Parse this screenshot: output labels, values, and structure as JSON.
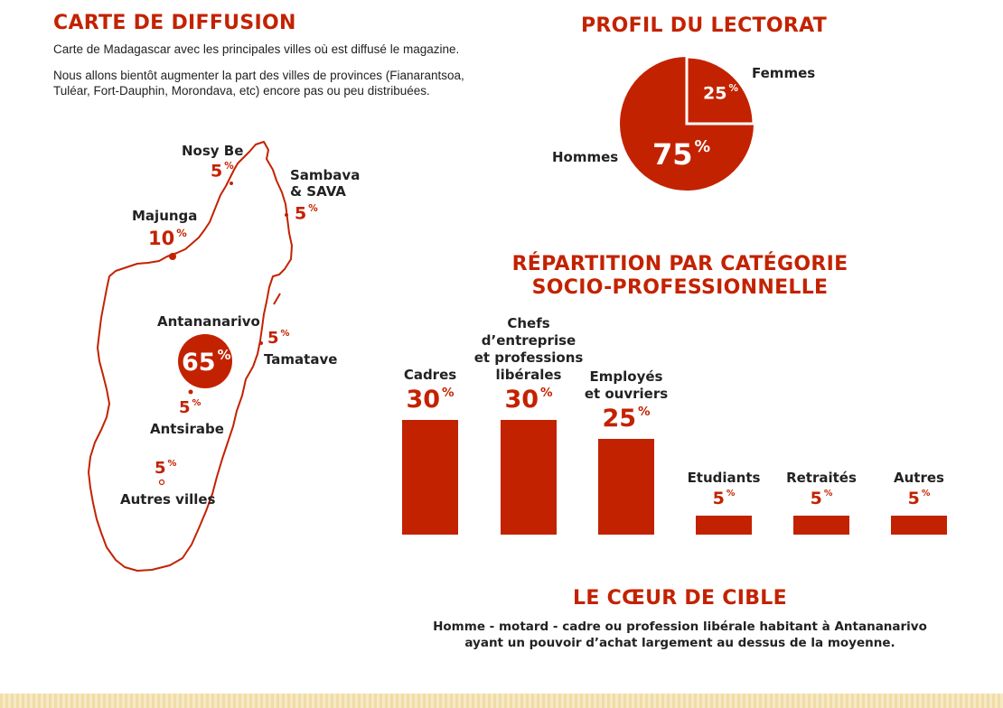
{
  "map_section": {
    "title": "CARTE DE DIFFUSION",
    "desc1": "Carte de Madagascar avec les principales villes où est diffusé le magazine.",
    "desc2": "Nous allons bientôt augmenter la part des villes de provinces (Fianarantsoa, Tuléar, Fort-Dauphin, Morondava, etc) encore pas ou peu distribuées.",
    "cities": {
      "nosy_be": {
        "name": "Nosy Be",
        "value": "5"
      },
      "sambava": {
        "name1": "Sambava",
        "name2": "& SAVA",
        "value": "5"
      },
      "majunga": {
        "name": "Majunga",
        "value": "10"
      },
      "antananarivo": {
        "name": "Antananarivo",
        "value": "65"
      },
      "tamatave": {
        "name": "Tamatave",
        "value": "5"
      },
      "antsirabe": {
        "name": "Antsirabe",
        "value": "5"
      },
      "autres": {
        "name": "Autres villes",
        "value": "5"
      }
    },
    "pct_sign": "%"
  },
  "readership": {
    "title": "PROFIL DU LECTORAT",
    "women_label": "Femmes",
    "men_label": "Hommes",
    "women_value": "25",
    "men_value": "75"
  },
  "categories_section": {
    "title_line1": "RÉPARTITION PAR CATÉGORIE",
    "title_line2": "SOCIO-PROFESSIONNELLE"
  },
  "target": {
    "title": "LE CŒUR DE CIBLE",
    "line1": "Homme - motard - cadre ou profession libérale habitant à Antananarivo",
    "line2": "ayant un pouvoir d’achat largement au dessus de la moyenne."
  },
  "colors": {
    "accent": "#c32200"
  },
  "chart_data": [
    {
      "type": "pie",
      "title": "PROFIL DU LECTORAT",
      "labels": [
        "Hommes",
        "Femmes"
      ],
      "values": [
        75,
        25
      ]
    },
    {
      "type": "bar",
      "title": "RÉPARTITION PAR CATÉGORIE SOCIO-PROFESSIONNELLE",
      "categories": [
        "Cadres",
        "Chefs d’entreprise et professions libérales",
        "Employés et ouvriers",
        "Etudiants",
        "Retraités",
        "Autres"
      ],
      "category_lines": [
        [
          "Cadres"
        ],
        [
          "Chefs",
          "d’entreprise",
          "et professions",
          "libérales"
        ],
        [
          "Employés",
          "et ouvriers"
        ],
        [
          "Etudiants"
        ],
        [
          "Retraités"
        ],
        [
          "Autres"
        ]
      ],
      "values": [
        30,
        30,
        25,
        5,
        5,
        5
      ],
      "value_labels": [
        "30",
        "30",
        "25",
        "5",
        "5",
        "5"
      ],
      "ylim": [
        0,
        30
      ]
    }
  ]
}
